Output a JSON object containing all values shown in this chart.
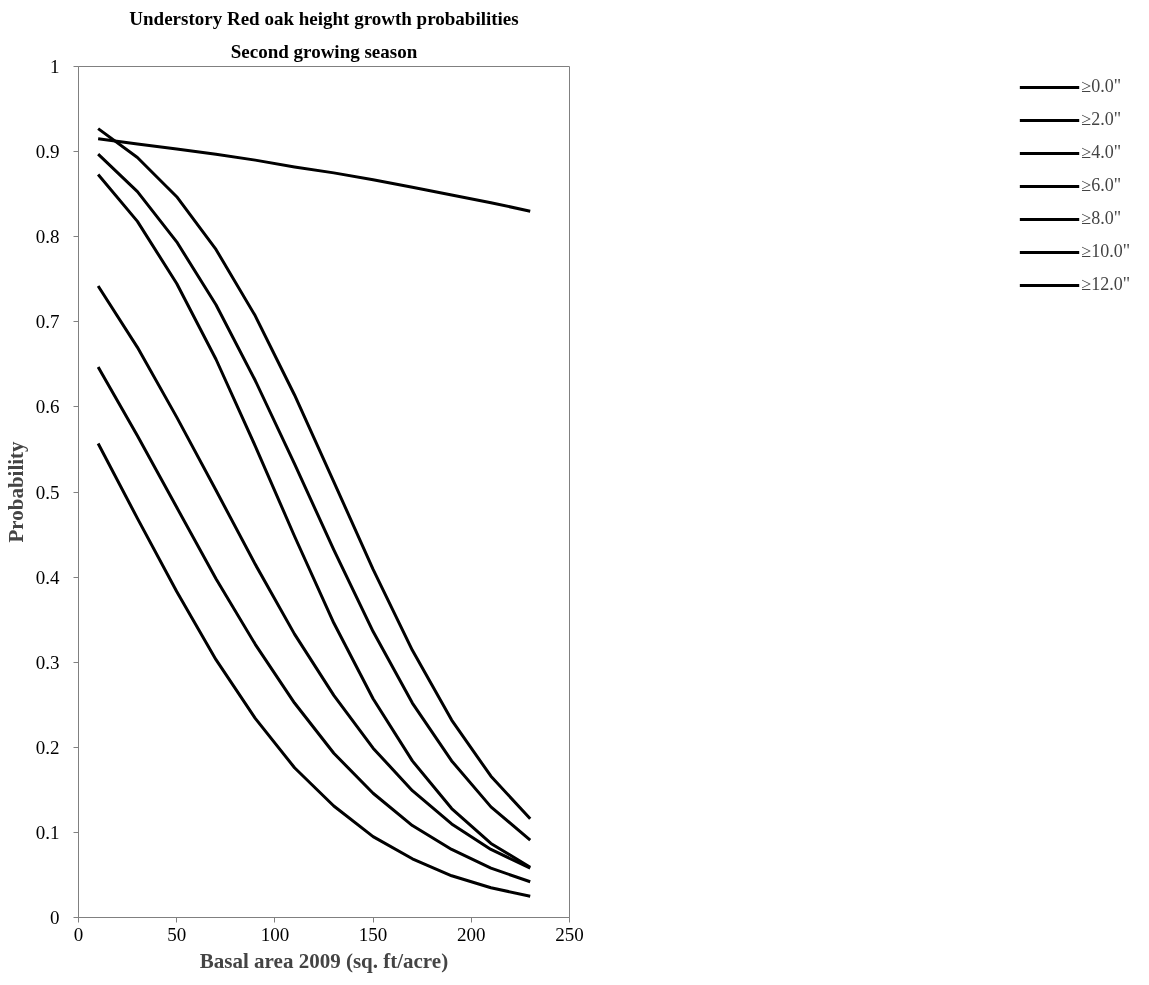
{
  "chart_data": {
    "type": "line",
    "title": "Understory Red oak height growth probabilities",
    "subtitle": "Second growing season",
    "xlabel": "Basal area 2009 (sq. ft/acre)",
    "ylabel": "Probability",
    "x": [
      10,
      30,
      50,
      70,
      90,
      110,
      130,
      150,
      170,
      190,
      210,
      230
    ],
    "xlim": [
      0,
      250
    ],
    "xticks": [
      0,
      50,
      100,
      150,
      200,
      250
    ],
    "ylim": [
      0,
      1
    ],
    "yticks": [
      0,
      0.1,
      0.2,
      0.3,
      0.4,
      0.5,
      0.6,
      0.7,
      0.8,
      0.9,
      1
    ],
    "grid": false,
    "legend": "right",
    "marker": "none",
    "line_style": "solid",
    "series": [
      {
        "name": "≥0.0\"",
        "color": "#000000",
        "values": [
          0.915,
          0.909,
          0.903,
          0.897,
          0.89,
          0.882,
          0.875,
          0.867,
          0.858,
          0.849,
          0.84,
          0.83
        ]
      },
      {
        "name": "≥2.0\"",
        "color": "#000000",
        "values": [
          0.927,
          0.893,
          0.847,
          0.785,
          0.707,
          0.614,
          0.512,
          0.409,
          0.314,
          0.232,
          0.166,
          0.116
        ]
      },
      {
        "name": "≥4.0\"",
        "color": "#000000",
        "values": [
          0.897,
          0.853,
          0.794,
          0.72,
          0.631,
          0.533,
          0.432,
          0.336,
          0.252,
          0.184,
          0.13,
          0.091
        ]
      },
      {
        "name": "≥6.0\"",
        "color": "#000000",
        "values": [
          0.873,
          0.818,
          0.745,
          0.656,
          0.554,
          0.448,
          0.346,
          0.257,
          0.184,
          0.128,
          0.087,
          0.059
        ]
      },
      {
        "name": "≥8.0\"",
        "color": "#000000",
        "values": [
          0.742,
          0.67,
          0.588,
          0.502,
          0.415,
          0.333,
          0.261,
          0.199,
          0.149,
          0.11,
          0.08,
          0.058
        ]
      },
      {
        "name": "≥10.0\"",
        "color": "#000000",
        "values": [
          0.647,
          0.566,
          0.482,
          0.398,
          0.321,
          0.252,
          0.193,
          0.146,
          0.108,
          0.08,
          0.058,
          0.042
        ]
      },
      {
        "name": "≥12.0\"",
        "color": "#000000",
        "values": [
          0.557,
          0.469,
          0.383,
          0.303,
          0.234,
          0.176,
          0.131,
          0.095,
          0.069,
          0.049,
          0.035,
          0.025
        ]
      }
    ]
  }
}
